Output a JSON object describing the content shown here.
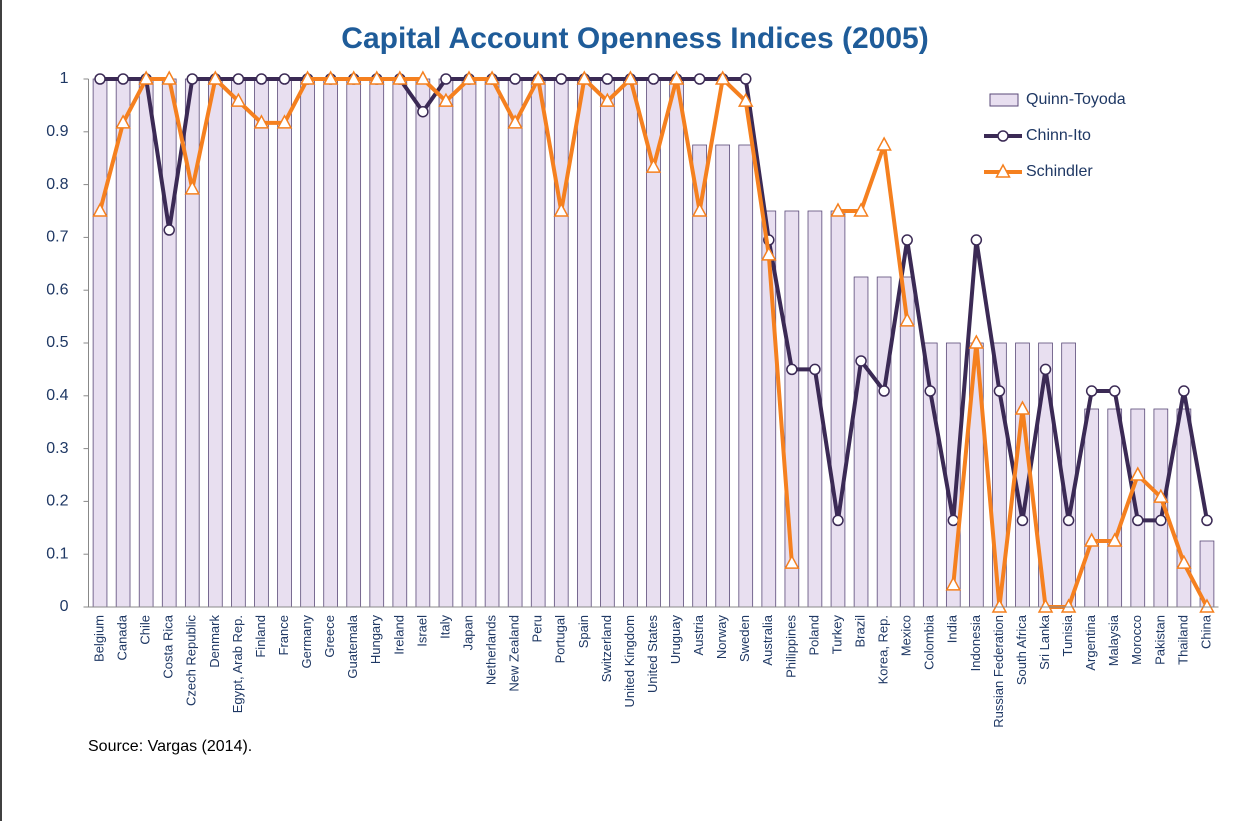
{
  "chart_data": {
    "type": "bar-line",
    "title": "Capital Account Openness Indices (2005)",
    "source": "Source: Vargas (2014).",
    "categories": [
      "Belgium",
      "Canada",
      "Chile",
      "Costa Rica",
      "Czech Republic",
      "Denmark",
      "Egypt, Arab Rep.",
      "Finland",
      "France",
      "Germany",
      "Greece",
      "Guatemala",
      "Hungary",
      "Ireland",
      "Israel",
      "Italy",
      "Japan",
      "Netherlands",
      "New Zealand",
      "Peru",
      "Portugal",
      "Spain",
      "Switzerland",
      "United Kingdom",
      "United States",
      "Uruguay",
      "Austria",
      "Norway",
      "Sweden",
      "Australia",
      "Philippines",
      "Poland",
      "Turkey",
      "Brazil",
      "Korea, Rep.",
      "Mexico",
      "Colombia",
      "India",
      "Indonesia",
      "Russian Federation",
      "South Africa",
      "Sri Lanka",
      "Tunisia",
      "Argentina",
      "Malaysia",
      "Morocco",
      "Pakistan",
      "Thailand",
      "China"
    ],
    "series": [
      {
        "name": "Quinn-Toyoda",
        "kind": "bar",
        "color": "#e8dff0",
        "values": [
          1,
          1,
          1,
          1,
          1,
          1,
          1,
          1,
          1,
          1,
          1,
          1,
          1,
          1,
          1,
          1,
          1,
          1,
          1,
          1,
          1,
          1,
          1,
          1,
          1,
          1,
          0.875,
          0.875,
          0.875,
          0.75,
          0.75,
          0.75,
          0.75,
          0.625,
          0.625,
          0.625,
          0.5,
          0.5,
          0.5,
          0.5,
          0.5,
          0.5,
          0.5,
          0.375,
          0.375,
          0.375,
          0.375,
          0.375,
          0.125
        ]
      },
      {
        "name": "Chinn-Ito",
        "kind": "line",
        "marker": "circle",
        "color": "#3b2a55",
        "values": [
          1,
          1,
          1,
          0.714,
          1,
          1,
          1,
          1,
          1,
          1,
          1,
          1,
          1,
          1,
          0.938,
          1,
          1,
          1,
          1,
          1,
          1,
          1,
          1,
          1,
          1,
          1,
          1,
          1,
          1,
          0.695,
          0.45,
          0.45,
          0.164,
          0.466,
          0.409,
          0.695,
          0.409,
          0.164,
          0.695,
          0.409,
          0.164,
          0.45,
          0.164,
          0.409,
          0.409,
          0.164,
          0.164,
          0.409,
          0.164
        ]
      },
      {
        "name": "Schindler",
        "kind": "line",
        "marker": "triangle",
        "color": "#f5801f",
        "values": [
          0.75,
          0.917,
          1,
          1,
          0.792,
          1,
          0.958,
          0.917,
          0.917,
          1,
          1,
          1,
          1,
          1,
          1,
          0.958,
          1,
          1,
          0.917,
          1,
          0.75,
          1,
          0.958,
          1,
          0.833,
          1,
          0.75,
          1,
          0.958,
          0.667,
          0.083,
          null,
          0.75,
          0.75,
          0.875,
          0.542,
          null,
          0.042,
          0.5,
          0,
          0.375,
          0,
          0,
          0.125,
          0.125,
          0.25,
          0.208,
          0.083,
          0
        ]
      }
    ],
    "ylim": [
      0,
      1
    ],
    "yticks": [
      0,
      0.1,
      0.2,
      0.3,
      0.4,
      0.5,
      0.6,
      0.7,
      0.8,
      0.9,
      1
    ]
  }
}
